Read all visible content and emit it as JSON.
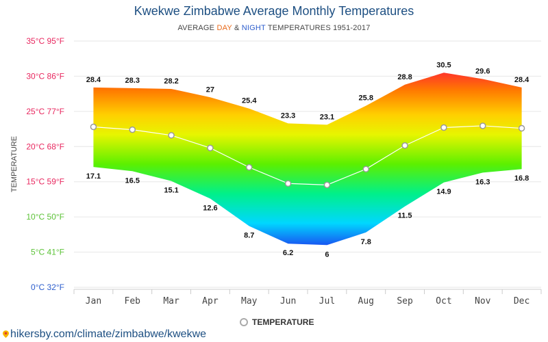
{
  "header": {
    "title": "Kwekwe Zimbabwe Average Monthly Temperatures",
    "subtitle_prefix": "AVERAGE ",
    "subtitle_day": "DAY",
    "subtitle_and": " & ",
    "subtitle_night": "NIGHT",
    "subtitle_suffix": " TEMPERATURES 1951-2017"
  },
  "legend": {
    "label": "TEMPERATURE"
  },
  "source": {
    "text": "hikersby.com/climate/zimbabwe/kwekwe"
  },
  "chart_data": {
    "type": "area",
    "categories": [
      "Jan",
      "Feb",
      "Mar",
      "Apr",
      "May",
      "Jun",
      "Jul",
      "Aug",
      "Sep",
      "Oct",
      "Nov",
      "Dec"
    ],
    "series": [
      {
        "values": [
          28.4,
          28.3,
          28.2,
          27,
          25.4,
          23.3,
          23.1,
          25.8,
          28.8,
          30.5,
          29.6,
          28.4
        ]
      },
      {
        "values": [
          17.1,
          16.5,
          15.1,
          12.6,
          8.7,
          6.2,
          6,
          7.8,
          11.5,
          14.9,
          16.3,
          16.8
        ]
      },
      {
        "name": "TEMPERATURE",
        "values": [
          22.8,
          22.4,
          21.6,
          19.8,
          17.05,
          14.75,
          14.55,
          16.8,
          20.15,
          22.7,
          22.95,
          22.6
        ]
      }
    ],
    "ylabel": "TEMPERATURE",
    "ylim": [
      0,
      35
    ],
    "yticks": [
      {
        "value": 35,
        "label": "35°C 95°F",
        "color": "#e8265e"
      },
      {
        "value": 30,
        "label": "30°C 86°F",
        "color": "#e8265e"
      },
      {
        "value": 25,
        "label": "25°C 77°F",
        "color": "#e8265e"
      },
      {
        "value": 20,
        "label": "20°C 68°F",
        "color": "#e8265e"
      },
      {
        "value": 15,
        "label": "15°C 59°F",
        "color": "#e8265e"
      },
      {
        "value": 10,
        "label": "10°C 50°F",
        "color": "#5bc236"
      },
      {
        "value": 5,
        "label": "5°C 41°F",
        "color": "#5bc236"
      },
      {
        "value": 0,
        "label": "0°C 32°F",
        "color": "#2b5ccc"
      }
    ],
    "grid": true,
    "legend_position": "bottom"
  }
}
